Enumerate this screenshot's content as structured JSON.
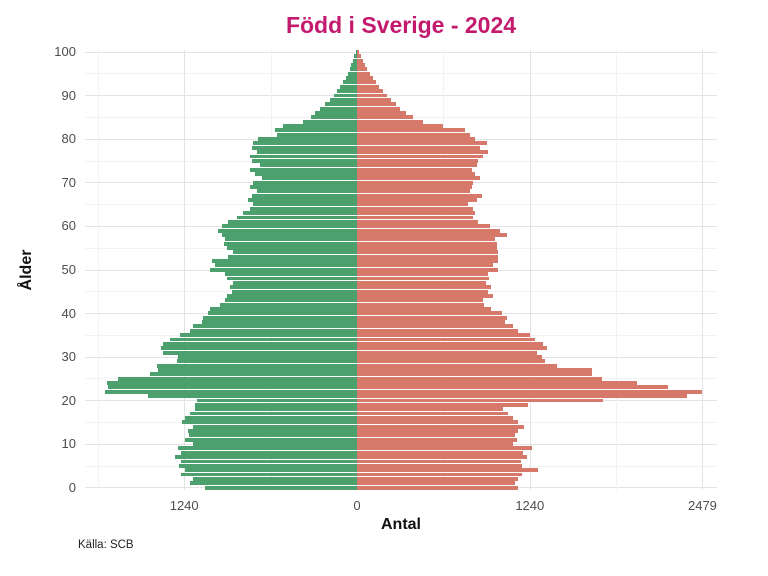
{
  "title": "Född i Sverige - 2024",
  "caption": "Källa: SCB",
  "colors": {
    "title": "#c41a6e",
    "left_series": "#4ba06e",
    "right_series": "#d7796a",
    "tick_text": "#4d4d4d",
    "grid_major": "#e3e3e3",
    "grid_minor": "#f2f2f2",
    "background": "#ffffff"
  },
  "chart_data": {
    "type": "bar",
    "subtype": "population-pyramid",
    "title": "Född i Sverige - 2024",
    "xlabel": "Antal",
    "ylabel": "Ålder",
    "grid": "on",
    "legend": "none",
    "ages": "0-100 (one horizontal bar per year of age, age 0 at bottom)",
    "x_ticks": [
      -1240,
      0,
      1240,
      2479
    ],
    "x_tick_labels": [
      "1240",
      "0",
      "1240",
      "2479"
    ],
    "x_minor_ticks": [
      -1860,
      -620,
      620,
      1860
    ],
    "y_ticks": [
      0,
      10,
      20,
      30,
      40,
      50,
      60,
      70,
      80,
      90,
      100
    ],
    "y_minor_ticks": [
      5,
      15,
      25,
      35,
      45,
      55,
      65,
      75,
      85,
      95
    ],
    "xlim": [
      -1952,
      2583
    ],
    "ylim": [
      0,
      101
    ],
    "series": [
      {
        "name": "left",
        "color": "#4ba06e",
        "values": [
          1090,
          1200,
          1175,
          1260,
          1235,
          1280,
          1265,
          1305,
          1260,
          1285,
          1175,
          1235,
          1205,
          1215,
          1175,
          1258,
          1234,
          1198,
          1163,
          1163,
          1150,
          1497,
          1808,
          1784,
          1796,
          1713,
          1485,
          1426,
          1438,
          1294,
          1282,
          1390,
          1405,
          1390,
          1342,
          1270,
          1198,
          1175,
          1114,
          1103,
          1067,
          1055,
          983,
          947,
          935,
          899,
          911,
          888,
          935,
          947,
          1055,
          1019,
          1043,
          923,
          888,
          935,
          954,
          947,
          971,
          995,
          971,
          923,
          863,
          816,
          768,
          744,
          780,
          756,
          720,
          768,
          744,
          684,
          732,
          768,
          696,
          756,
          768,
          720,
          756,
          744,
          708,
          576,
          588,
          533,
          387,
          330,
          298,
          262,
          228,
          196,
          168,
          143,
          120,
          100,
          82,
          66,
          52,
          40,
          29,
          19,
          10
        ]
      },
      {
        "name": "right",
        "color": "#d7796a",
        "values": [
          1157,
          1134,
          1157,
          1181,
          1296,
          1181,
          1176,
          1217,
          1193,
          1258,
          1122,
          1150,
          1134,
          1157,
          1195,
          1155,
          1120,
          1086,
          1050,
          1229,
          1767,
          2366,
          2479,
          2235,
          2007,
          1756,
          1684,
          1684,
          1433,
          1349,
          1325,
          1289,
          1361,
          1338,
          1278,
          1242,
          1158,
          1122,
          1062,
          1074,
          1038,
          962,
          914,
          902,
          974,
          938,
          962,
          926,
          950,
          938,
          1014,
          978,
          1014,
          1014,
          1014,
          1002,
          1002,
          990,
          1074,
          1026,
          954,
          870,
          835,
          847,
          835,
          799,
          859,
          895,
          811,
          823,
          835,
          883,
          847,
          823,
          859,
          870,
          906,
          942,
          883,
          931,
          847,
          811,
          775,
          619,
          476,
          400,
          355,
          310,
          280,
          245,
          215,
          185,
          160,
          135,
          115,
          95,
          75,
          55,
          40,
          28,
          15
        ]
      }
    ]
  }
}
